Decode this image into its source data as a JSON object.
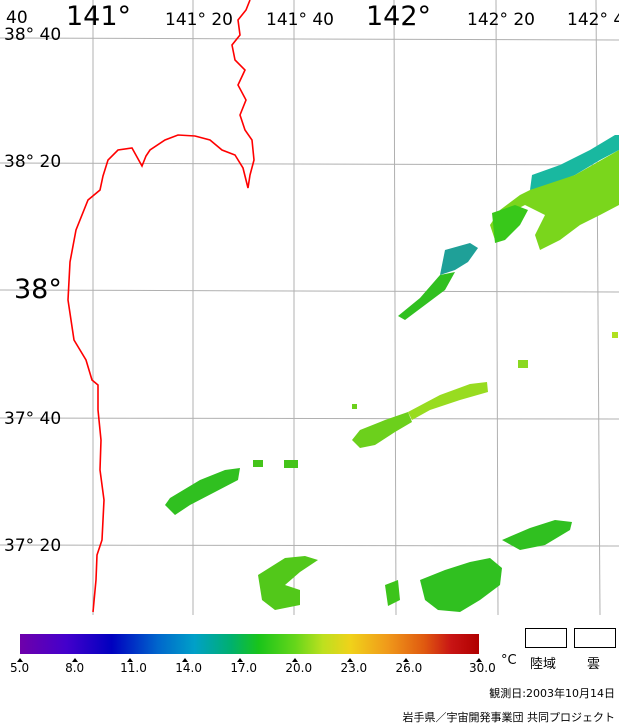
{
  "map": {
    "lon_labels": [
      "141°",
      "141° 20",
      "141° 40",
      "142°",
      "142° 20",
      "142° 4"
    ],
    "lat_labels": [
      "38° 40",
      "38° 20",
      "38°",
      "37° 40",
      "37° 20"
    ],
    "corner_label": "40"
  },
  "legend": {
    "ticks": [
      "5.0",
      "8.0",
      "11.0",
      "14.0",
      "17.0",
      "20.0",
      "23.0",
      "26.0",
      "30.0"
    ],
    "unit": "°C",
    "land_label": "陸域",
    "cloud_label": "雲",
    "colors": [
      "#6e00aa",
      "#0000bf",
      "#00a0c8",
      "#19c41a",
      "#bde01f",
      "#f0d21a",
      "#c81414"
    ]
  },
  "footer": {
    "observation_date": "観測日:2003年10月14日",
    "credit": "岩手県／宇宙開発事業団 共同プロジェクト"
  }
}
